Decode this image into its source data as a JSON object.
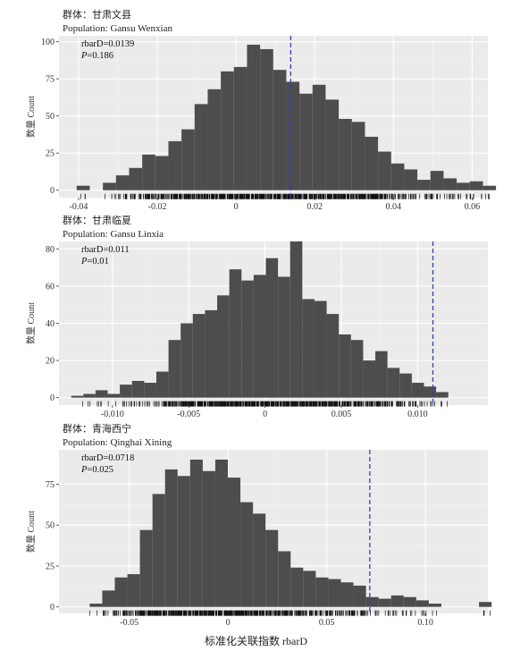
{
  "x_axis_label": "标准化关联指数 rbarD",
  "chart_data": [
    {
      "type": "bar",
      "title_cn": "群体：甘肃文县",
      "title_en": "Population: Gansu Wenxian",
      "ylabel": "数量 Count",
      "xlim": [
        -0.045,
        0.064
      ],
      "ylim": [
        -5,
        104
      ],
      "xticks": [
        -0.04,
        -0.02,
        0,
        0.02,
        0.04,
        0.06
      ],
      "xtick_labels": [
        "-0.04",
        "-0.02",
        "0",
        "0.02",
        "0.04",
        "0.06"
      ],
      "yticks": [
        0,
        25,
        50,
        75,
        100
      ],
      "yticks_labels": [
        "0",
        "25",
        "50",
        "75",
        "100"
      ],
      "bin_start": -0.0405,
      "bin_width": 0.00333,
      "values": [
        3,
        0,
        5,
        10,
        15,
        24,
        23,
        33,
        41,
        58,
        68,
        80,
        83,
        98,
        95,
        81,
        73,
        65,
        71,
        61,
        48,
        46,
        36,
        26,
        18,
        14,
        7,
        13,
        8,
        5,
        6,
        3,
        0,
        0,
        3
      ],
      "annot_stat": "rbarD=0.0139",
      "annot_p": "=0.186",
      "p_letter": "P",
      "vline": 0.0139
    },
    {
      "type": "bar",
      "title_cn": "群体：甘肃临夏",
      "title_en": "Population: Gansu Linxia",
      "ylabel": "数量 Count",
      "xlim": [
        -0.0135,
        0.0146
      ],
      "ylim": [
        -4,
        84
      ],
      "xticks": [
        -0.01,
        -0.005,
        0,
        0.005,
        0.01
      ],
      "xtick_labels": [
        "-0.010",
        "-0.005",
        "0",
        "0.005",
        "0.010"
      ],
      "yticks": [
        0,
        20,
        40,
        60,
        80
      ],
      "yticks_labels": [
        "0",
        "20",
        "40",
        "60",
        "80"
      ],
      "bin_start": -0.0127,
      "bin_width": 0.000797,
      "values": [
        1,
        2,
        4,
        2,
        7,
        9,
        8,
        14,
        31,
        40,
        45,
        47,
        55,
        69,
        63,
        66,
        75,
        65,
        84,
        53,
        52,
        45,
        34,
        31,
        20,
        25,
        16,
        13,
        8,
        6,
        3
      ],
      "annot_stat": "rbarD=0.011",
      "annot_p": "=0.01",
      "p_letter": "P",
      "vline": 0.011
    },
    {
      "type": "bar",
      "title_cn": "群体：青海西宁",
      "title_en": "Population: Qinghai Xining",
      "ylabel": "数量 Count",
      "xlim": [
        -0.0856,
        0.1316
      ],
      "ylim": [
        -4,
        96
      ],
      "xticks": [
        -0.05,
        0,
        0.05,
        0.1
      ],
      "xtick_labels": [
        "-0.05",
        "0",
        "0.05",
        "0.10"
      ],
      "yticks": [
        0,
        25,
        50,
        75
      ],
      "yticks_labels": [
        "0",
        "25",
        "50",
        "75"
      ],
      "bin_start": -0.0764,
      "bin_width": 0.00636,
      "values": [
        0,
        2,
        10,
        18,
        20,
        47,
        69,
        84,
        80,
        90,
        83,
        90,
        79,
        64,
        57,
        47,
        34,
        24,
        22,
        18,
        17,
        15,
        13,
        6,
        5,
        7,
        6,
        4,
        2,
        0,
        0,
        0,
        3
      ],
      "annot_stat": "rbarD=0.0718",
      "annot_p": "=0.025",
      "p_letter": "P",
      "vline": 0.0718
    }
  ]
}
